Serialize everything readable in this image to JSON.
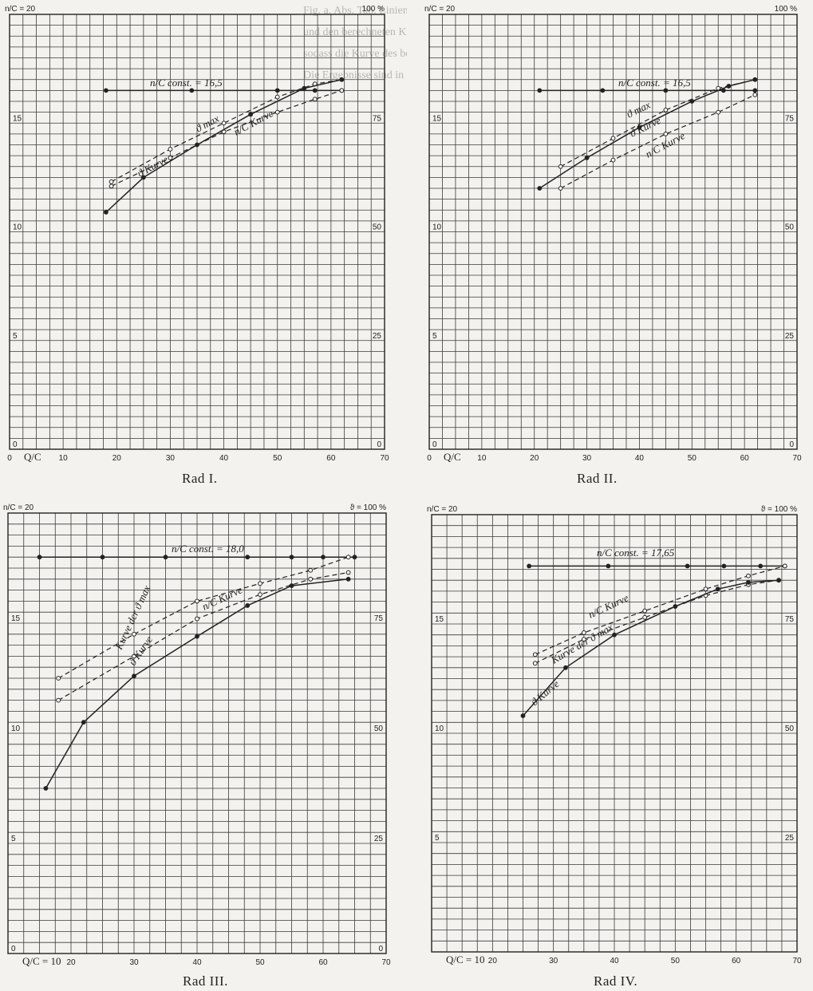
{
  "chart_data": [
    {
      "type": "line",
      "title": "Rad I.",
      "xlabel": "Q/C",
      "ylabel": "n/C = 20",
      "right_label": "100 %",
      "xlim": [
        0,
        70
      ],
      "ylim": [
        0,
        20
      ],
      "x_ticks": [
        "0",
        "10",
        "20",
        "30",
        "40",
        "50",
        "60",
        "70"
      ],
      "y_ticks": [
        "0",
        "5",
        "10",
        "15"
      ],
      "y_right_ticks": [
        "0",
        "25",
        "50",
        "75"
      ],
      "grid": true,
      "series": [
        {
          "name": "n/C const. = 16,5",
          "style": "solid",
          "x": [
            18,
            34,
            50,
            57,
            62
          ],
          "y": [
            16.5,
            16.5,
            16.5,
            16.5,
            16.5
          ]
        },
        {
          "name": "ϑ max",
          "style": "dashed",
          "x": [
            19,
            30,
            40,
            50,
            57,
            62
          ],
          "y": [
            12.3,
            13.8,
            15.0,
            16.2,
            16.8,
            17.0
          ]
        },
        {
          "name": "n/C Kurve",
          "style": "dashed",
          "x": [
            19,
            30,
            40,
            50,
            57,
            62
          ],
          "y": [
            12.1,
            13.4,
            14.6,
            15.5,
            16.1,
            16.5
          ]
        },
        {
          "name": "ϑ Kurve",
          "style": "solid",
          "x": [
            18,
            25,
            35,
            45,
            55,
            62
          ],
          "y": [
            10.9,
            12.5,
            14.0,
            15.4,
            16.6,
            17.0
          ]
        }
      ],
      "annotations": [
        "n/C const. = 16,5",
        "ϑ max",
        "n/C Kurve",
        "ϑ Kurve"
      ]
    },
    {
      "type": "line",
      "title": "Rad II.",
      "xlabel": "Q/C",
      "ylabel": "n/C = 20",
      "right_label": "100 %",
      "xlim": [
        0,
        70
      ],
      "ylim": [
        0,
        20
      ],
      "x_ticks": [
        "0",
        "10",
        "20",
        "30",
        "40",
        "50",
        "60",
        "70"
      ],
      "y_ticks": [
        "0",
        "5",
        "10",
        "15"
      ],
      "y_right_ticks": [
        "0",
        "25",
        "50",
        "75"
      ],
      "grid": true,
      "series": [
        {
          "name": "n/C const. = 16,5",
          "style": "solid",
          "x": [
            21,
            33,
            45,
            56,
            62
          ],
          "y": [
            16.5,
            16.5,
            16.5,
            16.5,
            16.5
          ]
        },
        {
          "name": "ϑ max",
          "style": "dashed",
          "x": [
            25,
            35,
            45,
            55,
            62
          ],
          "y": [
            13.0,
            14.3,
            15.6,
            16.6,
            17.0
          ]
        },
        {
          "name": "ϑ Kurve",
          "style": "solid",
          "x": [
            21,
            30,
            40,
            50,
            57,
            62
          ],
          "y": [
            12.0,
            13.4,
            14.8,
            16.0,
            16.7,
            17.0
          ]
        },
        {
          "name": "n/C Kurve",
          "style": "dashed",
          "x": [
            25,
            35,
            45,
            55,
            62
          ],
          "y": [
            12.0,
            13.3,
            14.5,
            15.5,
            16.3
          ]
        }
      ],
      "annotations": [
        "n/C const. = 16,5",
        "ϑ max",
        "ϑ Kurve",
        "n/C Kurve"
      ]
    },
    {
      "type": "line",
      "title": "Rad III.",
      "xlabel": "Q/C = 10",
      "ylabel": "n/C = 20",
      "right_label": "ϑ = 100 %",
      "xlim": [
        10,
        70
      ],
      "ylim": [
        0,
        20
      ],
      "x_ticks": [
        "20",
        "30",
        "40",
        "50",
        "60",
        "70"
      ],
      "y_ticks": [
        "0",
        "5",
        "10",
        "15"
      ],
      "y_right_ticks": [
        "0",
        "25",
        "50",
        "75"
      ],
      "grid": true,
      "series": [
        {
          "name": "n/C const. = 18,0",
          "style": "solid",
          "x": [
            15,
            25,
            35,
            48,
            55,
            60,
            65
          ],
          "y": [
            18.0,
            18.0,
            18.0,
            18.0,
            18.0,
            18.0,
            18.0
          ]
        },
        {
          "name": "n/C Kurve",
          "style": "dashed",
          "x": [
            18,
            30,
            40,
            50,
            58,
            64
          ],
          "y": [
            12.5,
            14.5,
            16.0,
            16.8,
            17.4,
            18.0
          ]
        },
        {
          "name": "Kurve der ϑ max",
          "style": "dashed",
          "x": [
            18,
            30,
            40,
            50,
            58,
            64
          ],
          "y": [
            11.5,
            13.5,
            15.2,
            16.3,
            17.0,
            17.3
          ]
        },
        {
          "name": "ϑ Kurve",
          "style": "solid",
          "x": [
            16,
            22,
            30,
            40,
            48,
            55,
            64
          ],
          "y": [
            7.5,
            10.5,
            12.6,
            14.4,
            15.8,
            16.7,
            17.0
          ]
        }
      ],
      "annotations": [
        "n/C const. = 18,0",
        "n/C Kurve",
        "Kurve der ϑ max",
        "ϑ Kurve"
      ]
    },
    {
      "type": "line",
      "title": "Rad IV.",
      "xlabel": "Q/C = 10",
      "ylabel": "n/C = 20",
      "right_label": "ϑ = 100 %",
      "xlim": [
        10,
        70
      ],
      "ylim": [
        0,
        20
      ],
      "x_ticks": [
        "20",
        "30",
        "40",
        "50",
        "60",
        "70"
      ],
      "y_ticks": [
        "5",
        "10",
        "15"
      ],
      "y_right_ticks": [
        "25",
        "50",
        "75"
      ],
      "grid": true,
      "series": [
        {
          "name": "n/C const. = 17,65",
          "style": "solid",
          "x": [
            26,
            39,
            52,
            58,
            64,
            68
          ],
          "y": [
            17.65,
            17.65,
            17.65,
            17.65,
            17.65,
            17.65
          ]
        },
        {
          "name": "n/C Kurve",
          "style": "dashed",
          "x": [
            27,
            35,
            45,
            55,
            62,
            68
          ],
          "y": [
            13.6,
            14.6,
            15.6,
            16.6,
            17.2,
            17.65
          ]
        },
        {
          "name": "Kurve der ϑ max",
          "style": "dashed",
          "x": [
            27,
            35,
            45,
            55,
            62,
            67
          ],
          "y": [
            13.2,
            14.3,
            15.3,
            16.3,
            16.8,
            17.0
          ]
        },
        {
          "name": "ϑ Kurve",
          "style": "solid",
          "x": [
            25,
            32,
            40,
            50,
            57,
            62,
            67
          ],
          "y": [
            10.8,
            13.0,
            14.5,
            15.8,
            16.6,
            16.9,
            17.0
          ]
        }
      ],
      "annotations": [
        "n/C const. = 17,65",
        "n/C Kurve",
        "Kurve der ϑ max",
        "ϑ Kurve"
      ]
    }
  ],
  "captions": [
    "Rad I.",
    "Rad II.",
    "Rad III.",
    "Rad IV."
  ],
  "background_text": [
    "Fig. a. Abs. Tab. Linien wurden dann zwischen den gemessenen Werten",
    "und den berechneten Kurven fuer jede Umdrehungszahl verglichen,",
    "sodass die Kurve des besten Wirkungsgrades erhalten wurde.",
    "Die Ergebnisse sind in den nebenstehenden Kurvenblaettern dargestellt."
  ]
}
